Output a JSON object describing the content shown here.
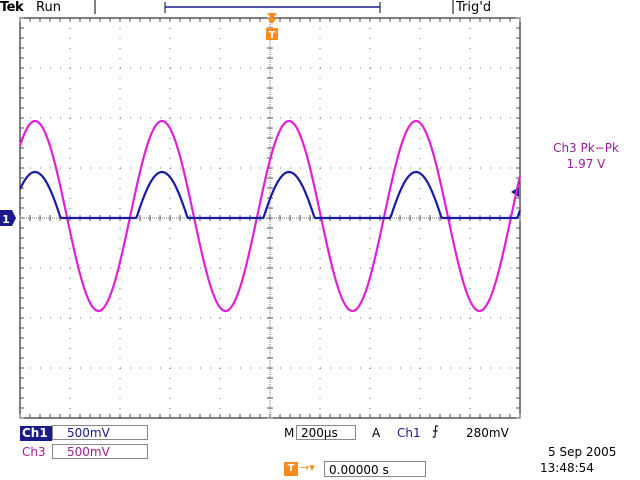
{
  "header": {
    "brand": "Tek",
    "acq_state": "Run",
    "trigger_status": "Trig'd"
  },
  "measurement": {
    "title": "Ch3 Pk−Pk",
    "value": "1.97 V"
  },
  "channels": [
    {
      "tag": "Ch1",
      "scale": "500mV",
      "color": "#1a1a8c"
    },
    {
      "tag": "Ch3",
      "scale": "500mV",
      "color": "#a0208f"
    }
  ],
  "ch1_marker": "1",
  "timebase": {
    "label": "M",
    "value": "200µs"
  },
  "trigger": {
    "label": "A",
    "source": "Ch1",
    "level": "280mV"
  },
  "trigger_marker": "T",
  "trigger_position": {
    "icon": "T",
    "value": "0.00000 s"
  },
  "timestamp": {
    "date": "5 Sep  2005",
    "time": "13:48:54"
  },
  "icons": [
    "trigger-t-icon",
    "ch1-ground-marker-icon",
    "rising-edge-icon",
    "trigger-level-arrow-icon",
    "trigger-position-arrow-icon"
  ],
  "colors": {
    "ch1": "#1a1aa8",
    "ch3": "#e020d8",
    "trigger": "#ff8c1a"
  }
}
